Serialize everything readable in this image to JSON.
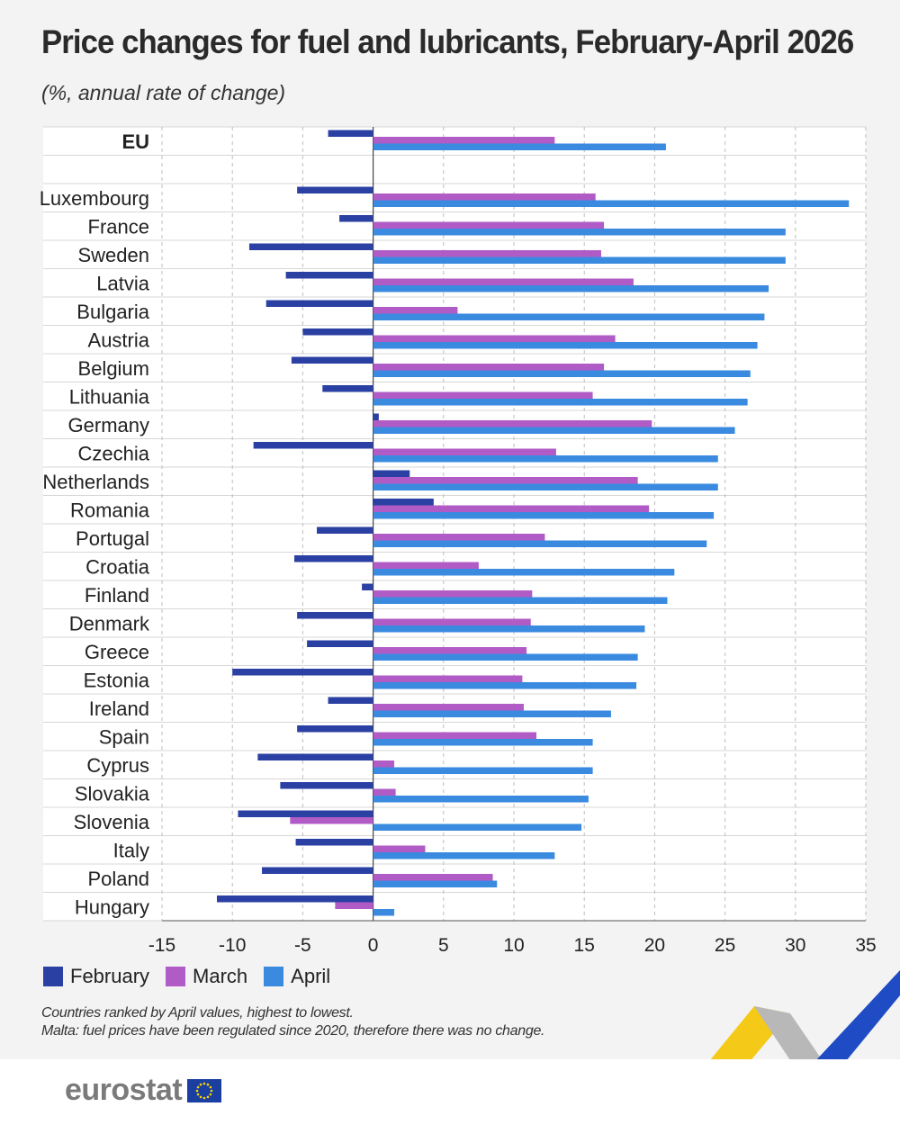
{
  "title": "Price changes for fuel and lubricants, February-April 2026",
  "subtitle": "(%, annual rate of change)",
  "notes": [
    "Countries ranked by April values, highest to lowest.",
    "Malta: fuel prices have been regulated since 2020, therefore there was no change."
  ],
  "logo": {
    "text": "eurostat",
    "icon": "eu-flag-icon"
  },
  "colors": {
    "February": "#2b40a3",
    "March": "#b15cc6",
    "April": "#3a8ae0",
    "grid": "#cfcfcf",
    "deco_yellow": "#f5c400",
    "deco_blue": "#1f4cc4",
    "deco_grey": "#b0b0b0"
  },
  "chart_data": {
    "type": "bar",
    "orientation": "horizontal",
    "xlim": [
      -15,
      35
    ],
    "xticks": [
      "-15",
      "-10",
      "-5",
      "0",
      "5",
      "10",
      "15",
      "20",
      "25",
      "30",
      "35"
    ],
    "grid": true,
    "legend_position": "bottom-left",
    "categories": [
      "EU",
      "Luxembourg",
      "France",
      "Sweden",
      "Latvia",
      "Bulgaria",
      "Austria",
      "Belgium",
      "Lithuania",
      "Germany",
      "Czechia",
      "Netherlands",
      "Romania",
      "Portugal",
      "Croatia",
      "Finland",
      "Denmark",
      "Greece",
      "Estonia",
      "Ireland",
      "Spain",
      "Cyprus",
      "Slovakia",
      "Slovenia",
      "Italy",
      "Poland",
      "Hungary"
    ],
    "series": [
      {
        "name": "February",
        "values": [
          -3.2,
          -5.4,
          -2.4,
          -8.8,
          -6.2,
          -7.6,
          -5.0,
          -5.8,
          -3.6,
          0.4,
          -8.5,
          2.6,
          4.3,
          -4.0,
          -5.6,
          -0.8,
          -5.4,
          -4.7,
          -10.0,
          -3.2,
          -5.4,
          -8.2,
          -6.6,
          -9.6,
          -5.5,
          -7.9,
          -11.1
        ]
      },
      {
        "name": "March",
        "values": [
          12.9,
          15.8,
          16.4,
          16.2,
          18.5,
          6.0,
          17.2,
          16.4,
          15.6,
          19.8,
          13.0,
          18.8,
          19.6,
          12.2,
          7.5,
          11.3,
          11.2,
          10.9,
          10.6,
          10.7,
          11.6,
          1.5,
          1.6,
          -5.9,
          3.7,
          8.5,
          -2.7
        ]
      },
      {
        "name": "April",
        "values": [
          20.8,
          33.8,
          29.3,
          29.3,
          28.1,
          27.8,
          27.3,
          26.8,
          26.6,
          25.7,
          24.5,
          24.5,
          24.2,
          23.7,
          21.4,
          20.9,
          19.3,
          18.8,
          18.7,
          16.9,
          15.6,
          15.6,
          15.3,
          14.8,
          12.9,
          8.8,
          1.5
        ]
      }
    ]
  }
}
